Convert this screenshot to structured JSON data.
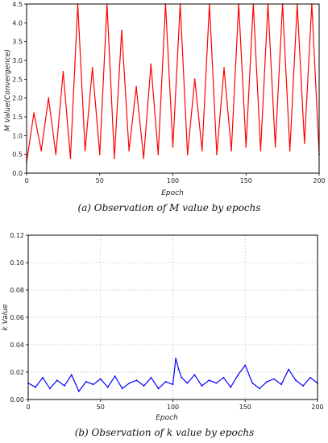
{
  "chart_data": [
    {
      "type": "line",
      "xlabel": "Epoch",
      "ylabel": "M Value(Convergence)",
      "caption": "(a) Observation of M value by epochs",
      "xlim": [
        0,
        200
      ],
      "ylim": [
        0,
        4.5
      ],
      "x_ticks": [
        "0",
        "50",
        "100",
        "150",
        "200"
      ],
      "y_ticks": [
        "0.0",
        "0.5",
        "1.0",
        "1.5",
        "2.0",
        "2.5",
        "3.0",
        "3.5",
        "4.0",
        "4.5"
      ],
      "grid": false,
      "color": "#ff0000",
      "series": [
        {
          "x": [
            0,
            5,
            10,
            15,
            20,
            25,
            30,
            35,
            40,
            45,
            50,
            55,
            60,
            65,
            70,
            75,
            80,
            85,
            90,
            95,
            100,
            105,
            110,
            115,
            120,
            125,
            130,
            135,
            140,
            145,
            150,
            155,
            160,
            165,
            170,
            175,
            180,
            185,
            190,
            195,
            200
          ],
          "values": [
            0.3,
            1.6,
            0.6,
            2.0,
            0.5,
            2.7,
            0.4,
            4.5,
            0.6,
            2.8,
            0.5,
            4.5,
            0.4,
            3.8,
            0.6,
            2.3,
            0.4,
            2.9,
            0.5,
            4.5,
            0.7,
            4.5,
            0.5,
            2.5,
            0.6,
            4.5,
            0.5,
            2.8,
            0.6,
            4.5,
            0.7,
            4.5,
            0.6,
            4.5,
            0.7,
            4.5,
            0.6,
            4.5,
            0.8,
            4.5,
            0.5
          ]
        }
      ]
    },
    {
      "type": "line",
      "xlabel": "Epoch",
      "ylabel": "k Value",
      "caption": "(b) Observation of k value by epochs",
      "xlim": [
        0,
        200
      ],
      "ylim": [
        0,
        0.12
      ],
      "x_ticks": [
        "0",
        "50",
        "100",
        "150",
        "200"
      ],
      "y_ticks": [
        "0.00",
        "0.02",
        "0.04",
        "0.06",
        "0.08",
        "0.10",
        "0.12"
      ],
      "grid": true,
      "color": "#0000ff",
      "series": [
        {
          "x": [
            0,
            5,
            10,
            15,
            20,
            25,
            30,
            35,
            40,
            45,
            50,
            55,
            60,
            65,
            70,
            75,
            80,
            85,
            90,
            95,
            100,
            102,
            104,
            106,
            110,
            115,
            120,
            125,
            130,
            135,
            140,
            145,
            150,
            155,
            160,
            165,
            170,
            175,
            180,
            185,
            190,
            195,
            200
          ],
          "values": [
            0.012,
            0.009,
            0.016,
            0.008,
            0.014,
            0.01,
            0.018,
            0.006,
            0.013,
            0.011,
            0.015,
            0.009,
            0.017,
            0.008,
            0.012,
            0.014,
            0.01,
            0.016,
            0.008,
            0.013,
            0.011,
            0.03,
            0.022,
            0.016,
            0.012,
            0.018,
            0.01,
            0.014,
            0.012,
            0.016,
            0.009,
            0.018,
            0.025,
            0.012,
            0.008,
            0.013,
            0.015,
            0.011,
            0.022,
            0.014,
            0.01,
            0.016,
            0.012
          ]
        }
      ]
    }
  ]
}
